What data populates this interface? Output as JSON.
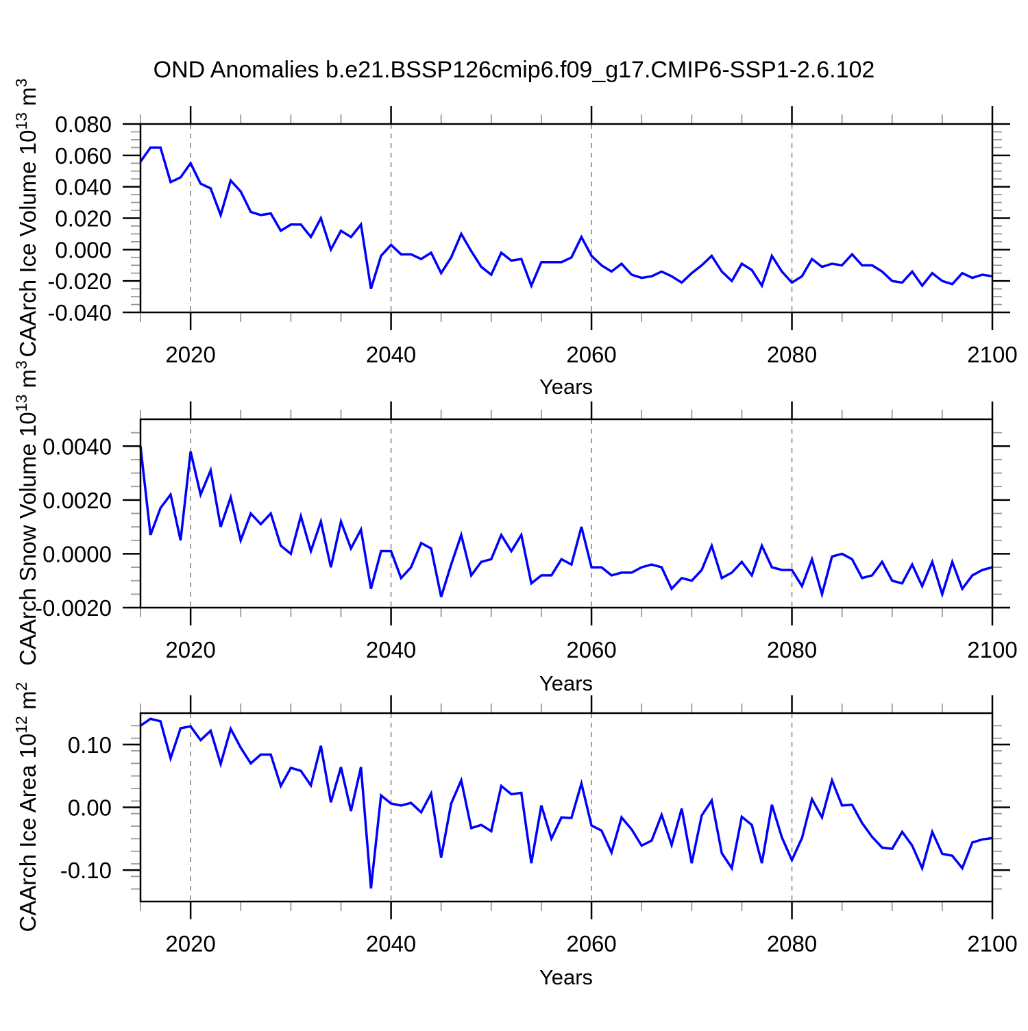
{
  "title": "OND Anomalies b.e21.BSSP126cmip6.f09_g17.CMIP6-SSP1-2.6.102",
  "line_color": "#0000ff",
  "grid_color": "#808080",
  "minor_tick_color": "#999999",
  "chart_data": [
    {
      "id": "ice-volume",
      "type": "line",
      "xlabel": "Years",
      "ylabel": "CAArch Ice Volume 10^13 m^3",
      "ylabel_parts": {
        "prefix": "CAArch Ice Volume 10",
        "exp": "13",
        "mid": " m",
        "exp2": "3"
      },
      "xlim": [
        2015,
        2100
      ],
      "ylim": [
        -0.04,
        0.08
      ],
      "x_ticks": [
        2020,
        2040,
        2060,
        2080,
        2100
      ],
      "x_minor_step": 5,
      "y_ticks": [
        0.08,
        0.06,
        0.04,
        0.02,
        0.0,
        -0.02,
        -0.04
      ],
      "y_minor_step": 0.005,
      "y_tick_decimals": 3,
      "grid_x": [
        2020,
        2040,
        2060,
        2080
      ],
      "x_start": 2015,
      "x_step": 1,
      "values": [
        0.056,
        0.065,
        0.065,
        0.043,
        0.046,
        0.055,
        0.042,
        0.039,
        0.022,
        0.044,
        0.037,
        0.024,
        0.022,
        0.023,
        0.012,
        0.016,
        0.016,
        0.008,
        0.02,
        0.0,
        0.012,
        0.008,
        0.016,
        -0.025,
        -0.004,
        0.003,
        -0.003,
        -0.003,
        -0.006,
        -0.002,
        -0.015,
        -0.005,
        0.01,
        -0.001,
        -0.011,
        -0.016,
        -0.002,
        -0.007,
        -0.006,
        -0.023,
        -0.008,
        -0.008,
        -0.008,
        -0.005,
        0.008,
        -0.004,
        -0.01,
        -0.014,
        -0.009,
        -0.016,
        -0.018,
        -0.017,
        -0.014,
        -0.017,
        -0.021,
        -0.015,
        -0.01,
        -0.004,
        -0.014,
        -0.02,
        -0.009,
        -0.013,
        -0.023,
        -0.004,
        -0.014,
        -0.021,
        -0.017,
        -0.006,
        -0.011,
        -0.009,
        -0.01,
        -0.003,
        -0.01,
        -0.01,
        -0.014,
        -0.02,
        -0.021,
        -0.014,
        -0.023,
        -0.015,
        -0.02,
        -0.022,
        -0.015,
        -0.018,
        -0.016,
        -0.017
      ]
    },
    {
      "id": "snow-volume",
      "type": "line",
      "xlabel": "Years",
      "ylabel": "CAArch Snow Volume 10^13 m^3",
      "ylabel_parts": {
        "prefix": "CAArch Snow Volume 10",
        "exp": "13",
        "mid": " m",
        "exp2": "3"
      },
      "xlim": [
        2015,
        2100
      ],
      "ylim": [
        -0.002,
        0.005
      ],
      "x_ticks": [
        2020,
        2040,
        2060,
        2080,
        2100
      ],
      "x_minor_step": 5,
      "y_ticks": [
        0.004,
        0.002,
        0.0,
        -0.002
      ],
      "y_minor_step": 0.0005,
      "y_tick_decimals": 4,
      "grid_x": [
        2020,
        2040,
        2060,
        2080
      ],
      "x_start": 2015,
      "x_step": 1,
      "values": [
        0.004,
        0.0007,
        0.0017,
        0.0022,
        0.0005,
        0.0038,
        0.0022,
        0.0031,
        0.001,
        0.0021,
        0.0005,
        0.0015,
        0.0011,
        0.0015,
        0.0003,
        0.0,
        0.0014,
        0.0001,
        0.0012,
        -0.0005,
        0.0012,
        0.0002,
        0.0009,
        -0.0013,
        0.0001,
        0.0001,
        -0.0009,
        -0.0005,
        0.0004,
        0.0002,
        -0.0016,
        -0.0004,
        0.0007,
        -0.0008,
        -0.0003,
        -0.0002,
        0.0007,
        0.0001,
        0.0007,
        -0.0011,
        -0.0008,
        -0.0008,
        -0.0002,
        -0.0004,
        0.001,
        -0.0005,
        -0.0005,
        -0.0008,
        -0.0007,
        -0.0007,
        -0.0005,
        -0.0004,
        -0.0005,
        -0.0013,
        -0.0009,
        -0.001,
        -0.0006,
        0.0003,
        -0.0009,
        -0.0007,
        -0.0003,
        -0.0008,
        0.0003,
        -0.0005,
        -0.0006,
        -0.0006,
        -0.0012,
        -0.0002,
        -0.0015,
        -0.0001,
        0.0,
        -0.0002,
        -0.0009,
        -0.0008,
        -0.0003,
        -0.001,
        -0.0011,
        -0.0004,
        -0.0012,
        -0.0003,
        -0.0015,
        -0.0003,
        -0.0013,
        -0.0008,
        -0.0006,
        -0.0005
      ]
    },
    {
      "id": "ice-area",
      "type": "line",
      "xlabel": "Years",
      "ylabel": "CAArch Ice Area 10^12 m^2",
      "ylabel_parts": {
        "prefix": "CAArch Ice Area 10",
        "exp": "12",
        "mid": " m",
        "exp2": "2"
      },
      "xlim": [
        2015,
        2100
      ],
      "ylim": [
        -0.15,
        0.15
      ],
      "x_ticks": [
        2020,
        2040,
        2060,
        2080,
        2100
      ],
      "x_minor_step": 5,
      "y_ticks": [
        0.1,
        0.0,
        -0.1
      ],
      "y_minor_step": 0.02,
      "y_tick_decimals": 2,
      "grid_x": [
        2020,
        2040,
        2060,
        2080
      ],
      "x_start": 2015,
      "x_step": 1,
      "values": [
        0.13,
        0.141,
        0.137,
        0.078,
        0.126,
        0.129,
        0.107,
        0.122,
        0.069,
        0.125,
        0.095,
        0.07,
        0.084,
        0.084,
        0.034,
        0.063,
        0.058,
        0.035,
        0.098,
        0.008,
        0.064,
        -0.006,
        0.064,
        -0.129,
        0.019,
        0.006,
        0.003,
        0.007,
        -0.008,
        0.022,
        -0.08,
        0.006,
        0.043,
        -0.033,
        -0.028,
        -0.038,
        0.034,
        0.021,
        0.023,
        -0.089,
        0.003,
        -0.05,
        -0.016,
        -0.017,
        0.038,
        -0.029,
        -0.037,
        -0.072,
        -0.016,
        -0.035,
        -0.061,
        -0.053,
        -0.012,
        -0.06,
        -0.002,
        -0.089,
        -0.013,
        0.011,
        -0.073,
        -0.097,
        -0.015,
        -0.028,
        -0.089,
        0.004,
        -0.048,
        -0.084,
        -0.049,
        0.013,
        -0.016,
        0.043,
        0.003,
        0.004,
        -0.025,
        -0.047,
        -0.064,
        -0.066,
        -0.039,
        -0.061,
        -0.097,
        -0.039,
        -0.074,
        -0.077,
        -0.097,
        -0.056,
        -0.051,
        -0.049
      ]
    }
  ]
}
